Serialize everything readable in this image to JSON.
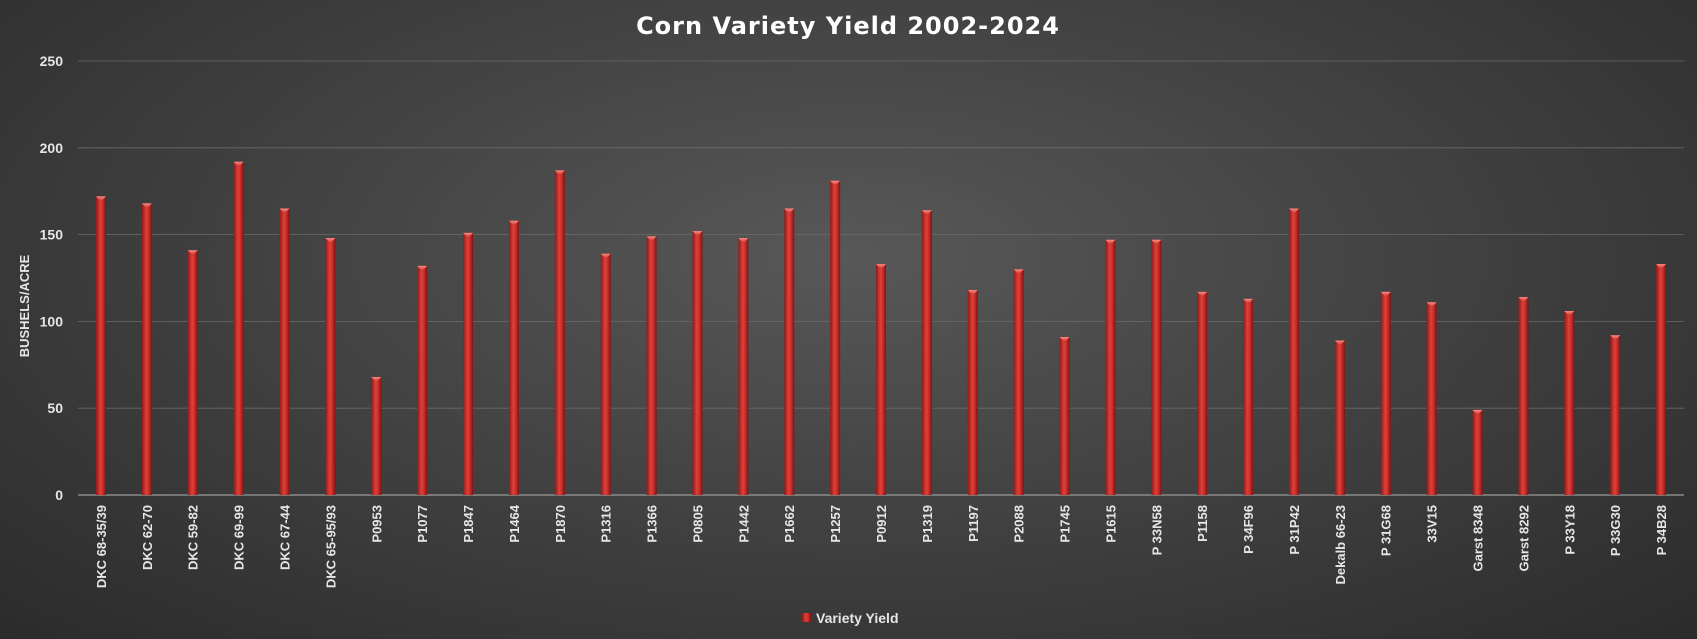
{
  "chart_data": {
    "type": "bar",
    "title": "Corn Variety Yield 2002-2024",
    "xlabel": "",
    "ylabel": "BUSHELS/ACRE",
    "ylim": [
      0,
      250
    ],
    "yticks": [
      0,
      50,
      100,
      150,
      200,
      250
    ],
    "grid": true,
    "legend_position": "bottom",
    "categories": [
      "DKC 68-35/39",
      "DKC 62-70",
      "DKC 59-82",
      "DKC 69-99",
      "DKC 67-44",
      "DKC 65-95/93",
      "P0953",
      "P1077",
      "P1847",
      "P1464",
      "P1870",
      "P1316",
      "P1366",
      "P0805",
      "P1442",
      "P1662",
      "P1257",
      "P0912",
      "P1319",
      "P1197",
      "P2088",
      "P1745",
      "P1615",
      "P 33N58",
      "P1158",
      "P 34F96",
      "P 31P42",
      "Dekalb 66-23",
      "P 31G68",
      "33V15",
      "Garst 8348",
      "Garst 8292",
      "P 33Y18",
      "P 33G30",
      "P 34B28"
    ],
    "series": [
      {
        "name": "Variety Yield",
        "color": "#d0312d",
        "values": [
          172,
          168,
          141,
          192,
          165,
          148,
          68,
          132,
          151,
          158,
          187,
          139,
          149,
          152,
          148,
          165,
          181,
          133,
          164,
          118,
          130,
          91,
          147,
          147,
          117,
          113,
          165,
          89,
          117,
          111,
          49,
          114,
          106,
          92,
          133
        ]
      }
    ]
  }
}
